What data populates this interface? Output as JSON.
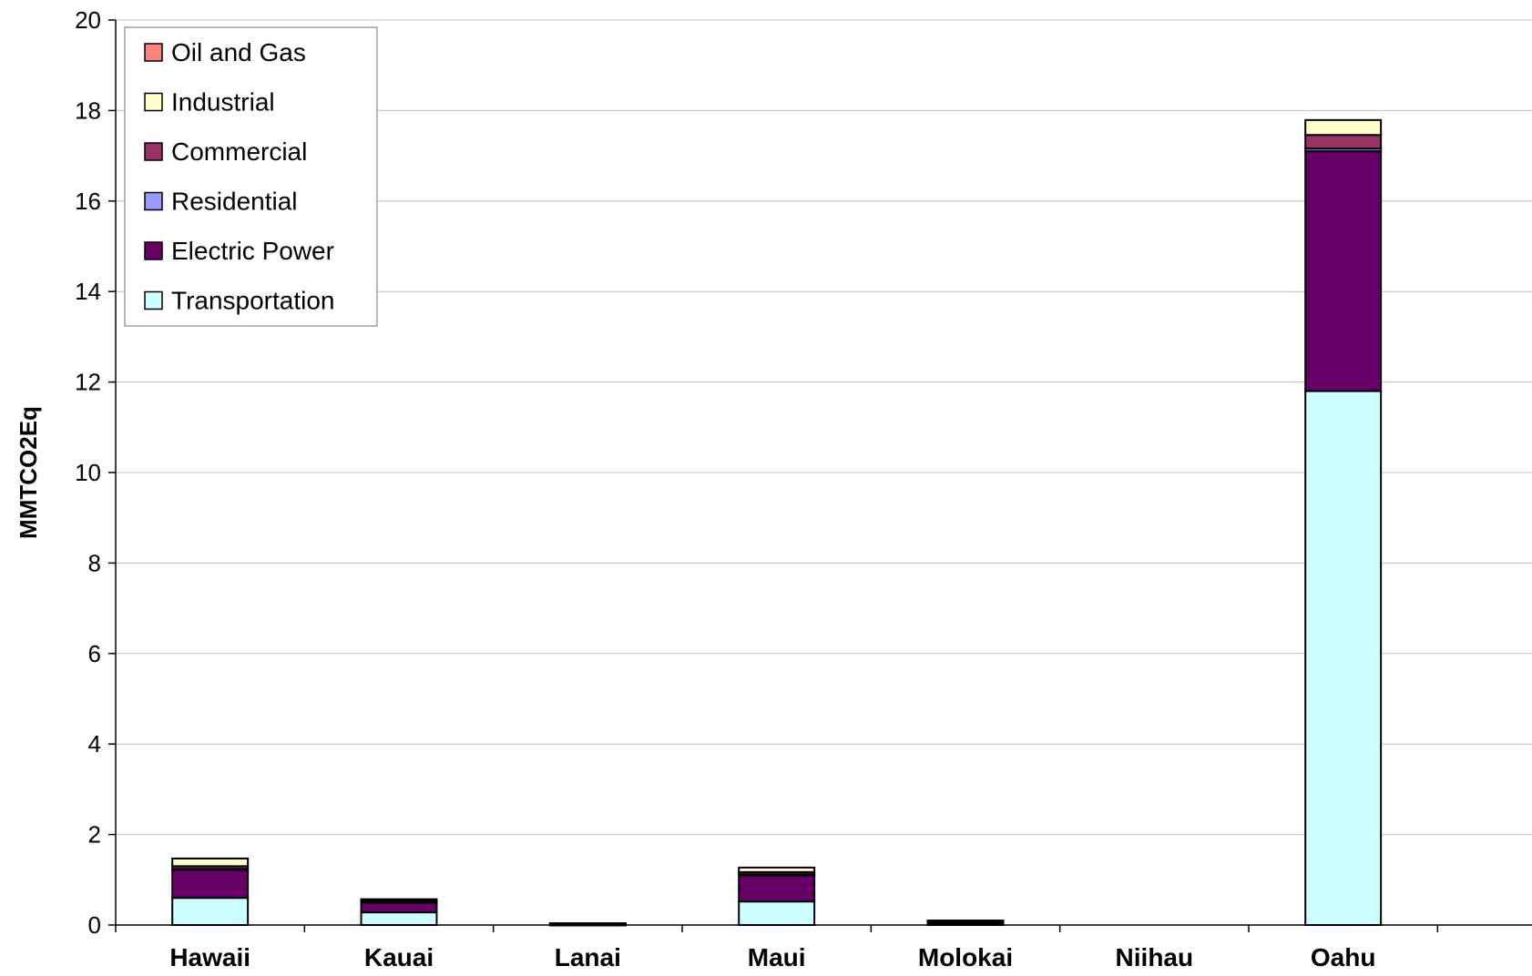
{
  "chart_data": {
    "type": "bar",
    "stacked": true,
    "categories": [
      "Hawaii",
      "Kauai",
      "Lanai",
      "Maui",
      "Molokai",
      "Niihau",
      "Oahu"
    ],
    "series": [
      {
        "name": "Transportation",
        "color": "#ccffff",
        "values": [
          0.6,
          0.28,
          0.01,
          0.52,
          0.03,
          0.0,
          11.8
        ]
      },
      {
        "name": "Electric Power",
        "color": "#660066",
        "values": [
          0.62,
          0.22,
          0.02,
          0.58,
          0.05,
          0.0,
          5.3
        ]
      },
      {
        "name": "Residential",
        "color": "#9999ff",
        "values": [
          0.02,
          0.01,
          0.0,
          0.02,
          0.0,
          0.0,
          0.06
        ]
      },
      {
        "name": "Commercial",
        "color": "#993366",
        "values": [
          0.06,
          0.03,
          0.0,
          0.05,
          0.01,
          0.0,
          0.3
        ]
      },
      {
        "name": "Industrial",
        "color": "#ffffcc",
        "values": [
          0.17,
          0.03,
          0.01,
          0.1,
          0.01,
          0.0,
          0.33
        ]
      },
      {
        "name": "Oil and Gas",
        "color": "#ff8080",
        "values": [
          0.0,
          0.0,
          0.0,
          0.0,
          0.0,
          0.0,
          0.0
        ]
      }
    ],
    "title": "",
    "xlabel": "",
    "ylabel": "MMTCO2Eq",
    "ylim": [
      0,
      20
    ],
    "yticks": [
      "0",
      "2",
      "4",
      "6",
      "8",
      "10",
      "12",
      "14",
      "16",
      "18",
      "20"
    ],
    "grid": true,
    "legend_position": "top-left",
    "legend_order": [
      "Oil and Gas",
      "Industrial",
      "Commercial",
      "Residential",
      "Electric Power",
      "Transportation"
    ]
  }
}
